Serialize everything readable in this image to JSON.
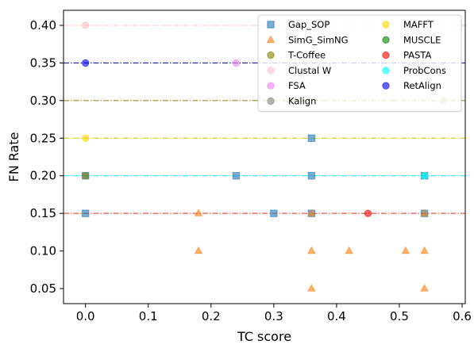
{
  "chart_data": {
    "type": "scatter",
    "title": "",
    "xlabel": "TC score",
    "ylabel": "FN Rate",
    "xlim": [
      -0.035,
      0.605
    ],
    "ylim": [
      0.03,
      0.42
    ],
    "xticks": [
      0.0,
      0.1,
      0.2,
      0.3,
      0.4,
      0.5,
      0.6
    ],
    "xtick_labels": [
      "0.0",
      "0.1",
      "0.2",
      "0.3",
      "0.4",
      "0.5",
      "0.6"
    ],
    "yticks": [
      0.05,
      0.1,
      0.15,
      0.2,
      0.25,
      0.3,
      0.35,
      0.4
    ],
    "ytick_labels": [
      "0.05",
      "0.10",
      "0.15",
      "0.20",
      "0.25",
      "0.30",
      "0.35",
      "0.40"
    ],
    "grid": false,
    "legend_position": "top-right",
    "legend_columns": 2,
    "series": [
      {
        "name": "Gap_SOP",
        "marker": "square",
        "color": "#1f77b4",
        "points": [
          [
            0.0,
            0.15
          ],
          [
            0.0,
            0.2
          ],
          [
            0.24,
            0.2
          ],
          [
            0.3,
            0.15
          ],
          [
            0.36,
            0.25
          ],
          [
            0.36,
            0.2
          ],
          [
            0.36,
            0.15
          ],
          [
            0.54,
            0.15
          ],
          [
            0.54,
            0.2
          ]
        ]
      },
      {
        "name": "SimG_SimNG",
        "marker": "triangle",
        "color": "#ff7f0e",
        "points": [
          [
            0.18,
            0.15
          ],
          [
            0.18,
            0.1
          ],
          [
            0.36,
            0.15
          ],
          [
            0.36,
            0.1
          ],
          [
            0.36,
            0.05
          ],
          [
            0.42,
            0.1
          ],
          [
            0.51,
            0.1
          ],
          [
            0.54,
            0.1
          ],
          [
            0.54,
            0.05
          ],
          [
            0.54,
            0.15
          ]
        ]
      },
      {
        "name": "T-Coffee",
        "marker": "circle",
        "color": "#808000",
        "points": [
          [
            0.0,
            0.2
          ]
        ]
      },
      {
        "name": "Clustal W",
        "marker": "circle",
        "color": "#ffc0cb",
        "points": [
          [
            0.0,
            0.4
          ]
        ]
      },
      {
        "name": "FSA",
        "marker": "circle",
        "color": "#ee82ee",
        "points": [
          [
            0.24,
            0.35
          ]
        ]
      },
      {
        "name": "Kalign",
        "marker": "circle",
        "color": "#808080",
        "points": []
      },
      {
        "name": "MAFFT",
        "marker": "circle",
        "color": "#ffd700",
        "points": [
          [
            0.0,
            0.25
          ]
        ]
      },
      {
        "name": "MUSCLE",
        "marker": "circle",
        "color": "#008000",
        "points": []
      },
      {
        "name": "PASTA",
        "marker": "circle",
        "color": "#ff0000",
        "points": [
          [
            0.45,
            0.15
          ]
        ]
      },
      {
        "name": "ProbCons",
        "marker": "circle",
        "color": "#00ffff",
        "points": [
          [
            0.54,
            0.2
          ]
        ]
      },
      {
        "name": "RetAlign",
        "marker": "circle",
        "color": "#0000ff",
        "points": [
          [
            0.0,
            0.35
          ]
        ]
      },
      {
        "name": "",
        "marker": "circle",
        "color": "#bdb76b",
        "legend": false,
        "points": [
          [
            0.57,
            0.3
          ]
        ]
      }
    ],
    "reference_lines": [
      {
        "y": 0.4,
        "color": "#ffc0cb"
      },
      {
        "y": 0.35,
        "color": "#00008b"
      },
      {
        "y": 0.3,
        "color": "#808000"
      },
      {
        "y": 0.25,
        "color": "#d4c400"
      },
      {
        "y": 0.2,
        "color": "#00e5ff"
      },
      {
        "y": 0.15,
        "color": "#e0331a"
      }
    ]
  }
}
